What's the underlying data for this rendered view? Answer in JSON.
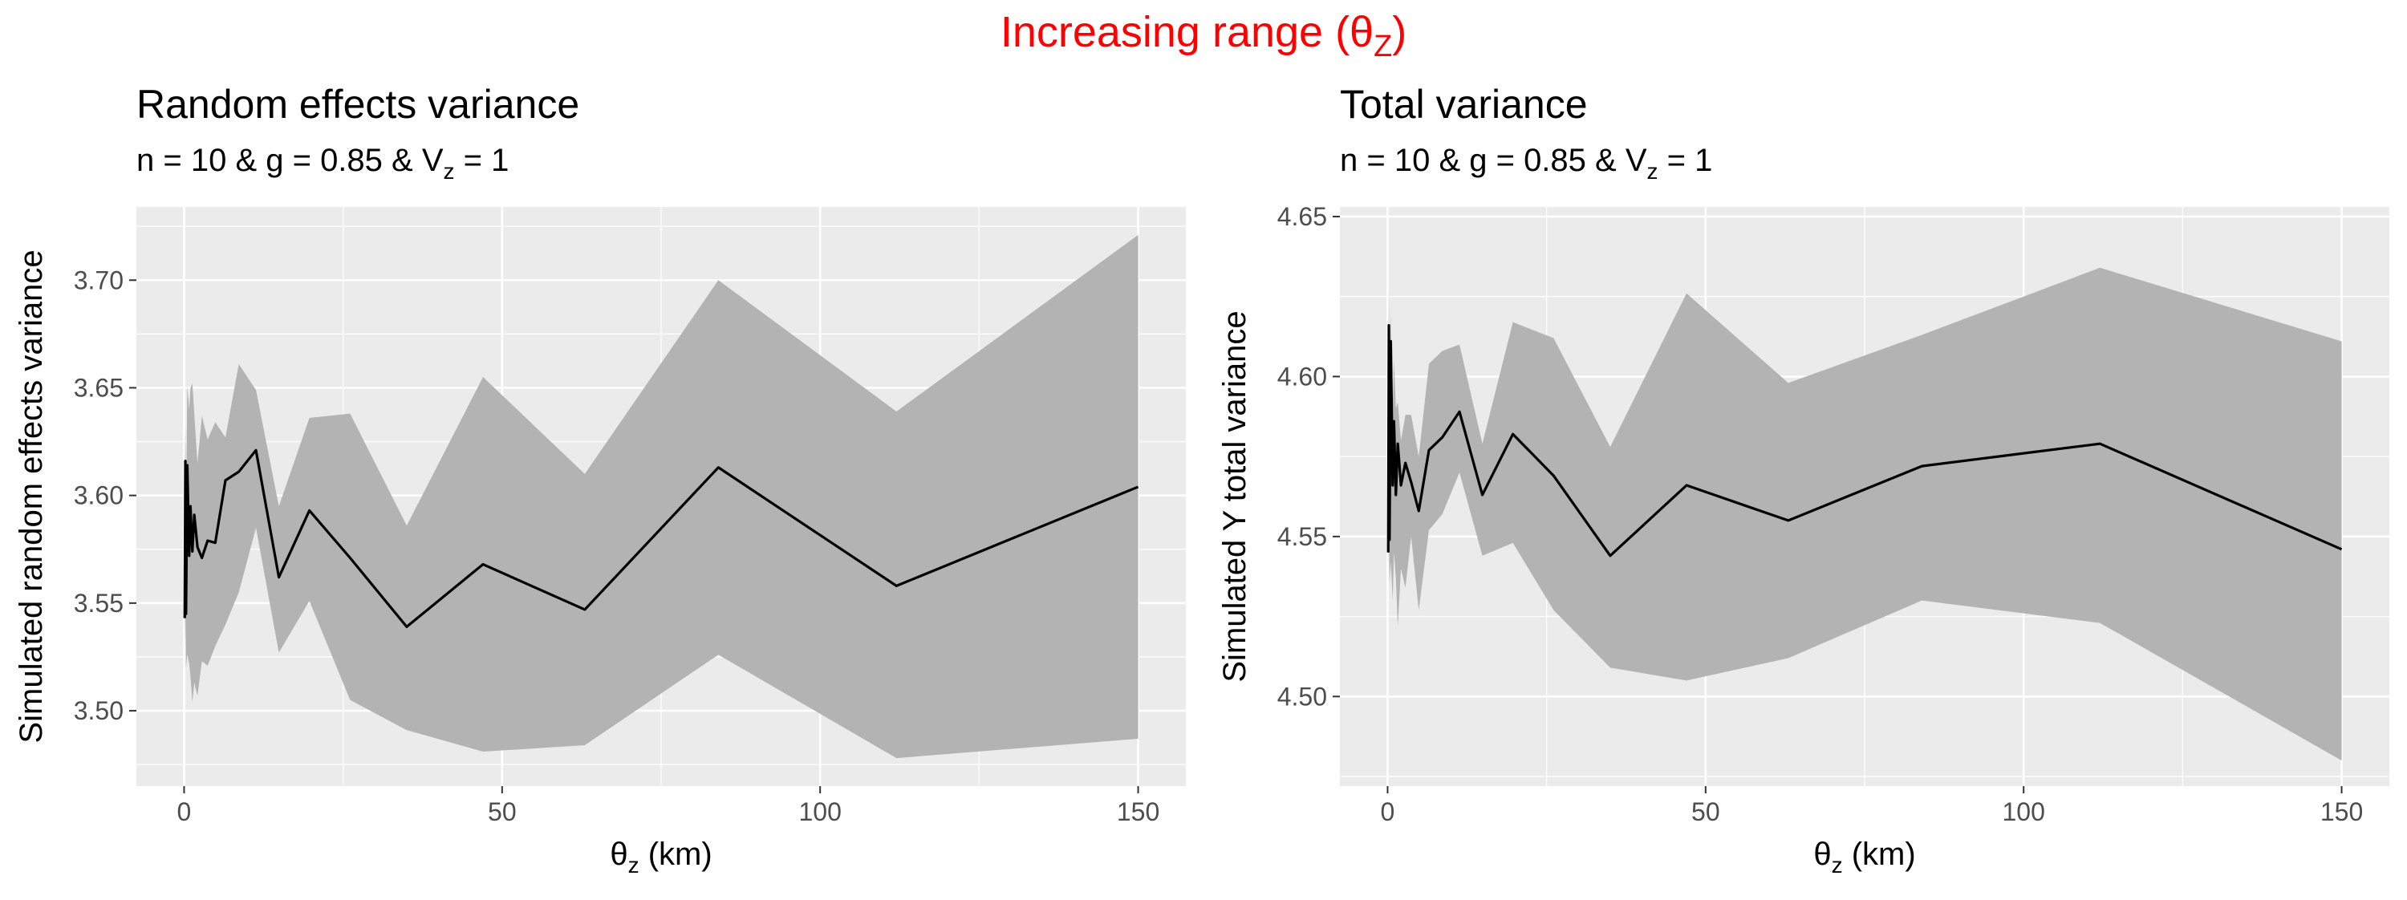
{
  "suptitle": {
    "text": "Increasing range (θ",
    "sub": "Z",
    "suffix": ")"
  },
  "chart_data": [
    {
      "type": "line",
      "title": "Random effects variance",
      "subtitle": {
        "prefix": "n = 10 & g = 0.85 & V",
        "sub": "z",
        "suffix": " = 1"
      },
      "xlabel": {
        "prefix": "θ",
        "sub": "z",
        "suffix": " (km)"
      },
      "ylabel": "Simulated random effects variance",
      "xlim": [
        -7.5,
        157.5
      ],
      "ylim": [
        3.465,
        3.734
      ],
      "xticks": [
        0,
        50,
        100,
        150
      ],
      "yticks": [
        3.5,
        3.55,
        3.6,
        3.65,
        3.7
      ],
      "ytick_labels": [
        "3.50",
        "3.55",
        "3.60",
        "3.65",
        "3.70"
      ],
      "grid": true,
      "band_color": "#b3b3b3",
      "line_color": "#000000",
      "panel_bg": "#ebebeb",
      "series": [
        {
          "x": [
            0.1,
            0.2,
            0.3,
            0.5,
            0.8,
            1.0,
            1.3,
            1.6,
            2.1,
            2.8,
            3.7,
            4.9,
            6.5,
            8.6,
            11.3,
            14.9,
            19.7,
            26.1,
            35.0,
            47.0,
            63.0,
            84.0,
            112.0,
            150.0
          ],
          "y": [
            3.543,
            3.616,
            3.545,
            3.614,
            3.572,
            3.595,
            3.574,
            3.591,
            3.576,
            3.571,
            3.579,
            3.578,
            3.607,
            3.611,
            3.621,
            3.562,
            3.593,
            3.571,
            3.539,
            3.568,
            3.547,
            3.613,
            3.558,
            3.604
          ],
          "lower": [
            3.53,
            3.552,
            3.52,
            3.526,
            3.522,
            3.516,
            3.504,
            3.513,
            3.507,
            3.523,
            3.521,
            3.53,
            3.54,
            3.555,
            3.585,
            3.527,
            3.551,
            3.505,
            3.491,
            3.481,
            3.484,
            3.526,
            3.478,
            3.487
          ],
          "upper": [
            3.605,
            3.632,
            3.585,
            3.651,
            3.64,
            3.65,
            3.652,
            3.638,
            3.615,
            3.637,
            3.626,
            3.634,
            3.627,
            3.661,
            3.649,
            3.595,
            3.636,
            3.638,
            3.586,
            3.655,
            3.61,
            3.7,
            3.639,
            3.721
          ]
        }
      ]
    },
    {
      "type": "line",
      "title": "Total variance",
      "subtitle": {
        "prefix": "n = 10 & g = 0.85 & V",
        "sub": "z",
        "suffix": " = 1"
      },
      "xlabel": {
        "prefix": "θ",
        "sub": "z",
        "suffix": " (km)"
      },
      "ylabel": "Simulated Y total variance",
      "xlim": [
        -7.5,
        157.5
      ],
      "ylim": [
        4.472,
        4.653
      ],
      "xticks": [
        0,
        50,
        100,
        150
      ],
      "yticks": [
        4.5,
        4.55,
        4.6,
        4.65
      ],
      "ytick_labels": [
        "4.50",
        "4.55",
        "4.60",
        "4.65"
      ],
      "grid": true,
      "band_color": "#b3b3b3",
      "line_color": "#000000",
      "panel_bg": "#ebebeb",
      "series": [
        {
          "x": [
            0.1,
            0.2,
            0.3,
            0.5,
            0.8,
            1.0,
            1.3,
            1.6,
            2.1,
            2.8,
            3.7,
            4.9,
            6.5,
            8.6,
            11.3,
            14.9,
            19.7,
            26.1,
            35.0,
            47.0,
            63.0,
            84.0,
            112.0,
            150.0
          ],
          "y": [
            4.545,
            4.616,
            4.549,
            4.611,
            4.566,
            4.586,
            4.563,
            4.579,
            4.566,
            4.573,
            4.567,
            4.558,
            4.577,
            4.581,
            4.589,
            4.563,
            4.582,
            4.569,
            4.544,
            4.566,
            4.555,
            4.572,
            4.579,
            4.546
          ],
          "lower": [
            4.54,
            4.555,
            4.535,
            4.542,
            4.53,
            4.545,
            4.537,
            4.522,
            4.54,
            4.534,
            4.55,
            4.527,
            4.552,
            4.557,
            4.57,
            4.544,
            4.548,
            4.527,
            4.509,
            4.505,
            4.512,
            4.53,
            4.523,
            4.48
          ],
          "upper": [
            4.6,
            4.628,
            4.56,
            4.62,
            4.59,
            4.605,
            4.59,
            4.592,
            4.58,
            4.588,
            4.588,
            4.575,
            4.604,
            4.608,
            4.61,
            4.579,
            4.617,
            4.612,
            4.578,
            4.626,
            4.598,
            4.613,
            4.634,
            4.611
          ]
        }
      ]
    }
  ]
}
